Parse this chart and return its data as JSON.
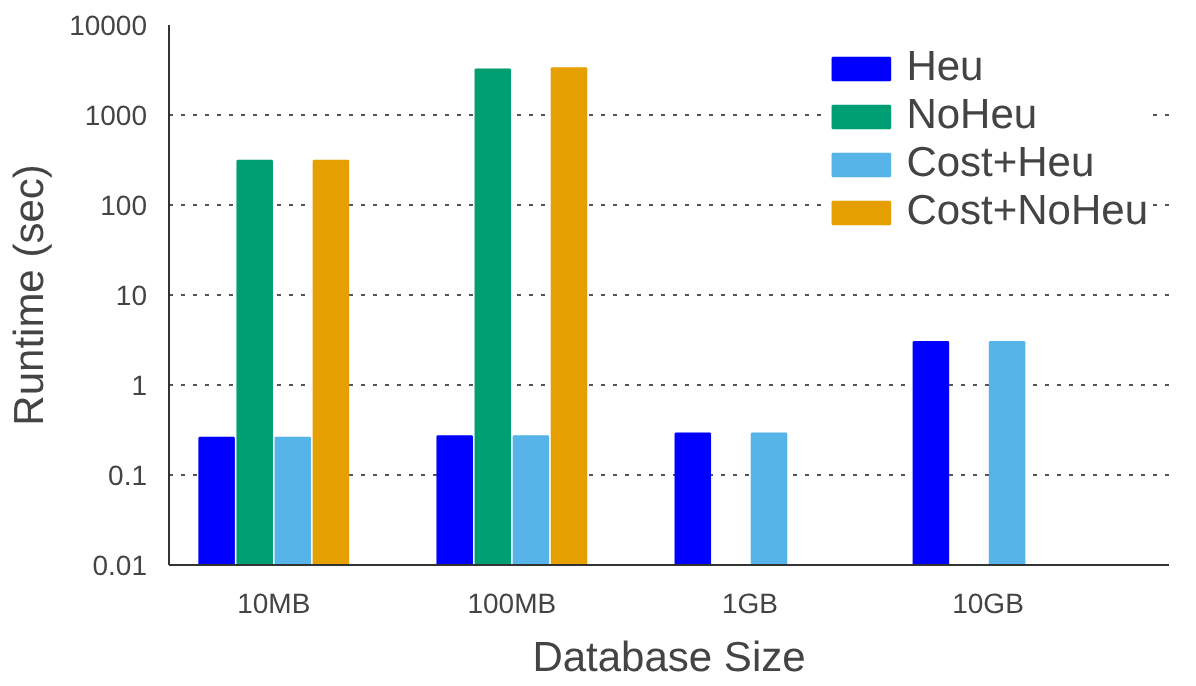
{
  "chart_data": {
    "type": "bar",
    "xlabel": "Database Size",
    "ylabel": "Runtime (sec)",
    "categories": [
      "10MB",
      "100MB",
      "1GB",
      "10GB"
    ],
    "series": [
      {
        "name": "Heu",
        "color": "#0000ff",
        "values": [
          0.26,
          0.27,
          0.29,
          3.0
        ]
      },
      {
        "name": "NoHeu",
        "color": "#009e73",
        "values": [
          310,
          3200,
          null,
          null
        ]
      },
      {
        "name": "Cost+Heu",
        "color": "#56b4e9",
        "values": [
          0.26,
          0.27,
          0.29,
          3.0
        ]
      },
      {
        "name": "Cost+NoHeu",
        "color": "#e69f00",
        "values": [
          310,
          3300,
          null,
          null
        ]
      }
    ],
    "log": true,
    "ylim": [
      0.01,
      10000
    ],
    "yticks": [
      0.01,
      0.1,
      1,
      10,
      100,
      1000,
      10000
    ],
    "grid": "y",
    "legend": "top right"
  }
}
